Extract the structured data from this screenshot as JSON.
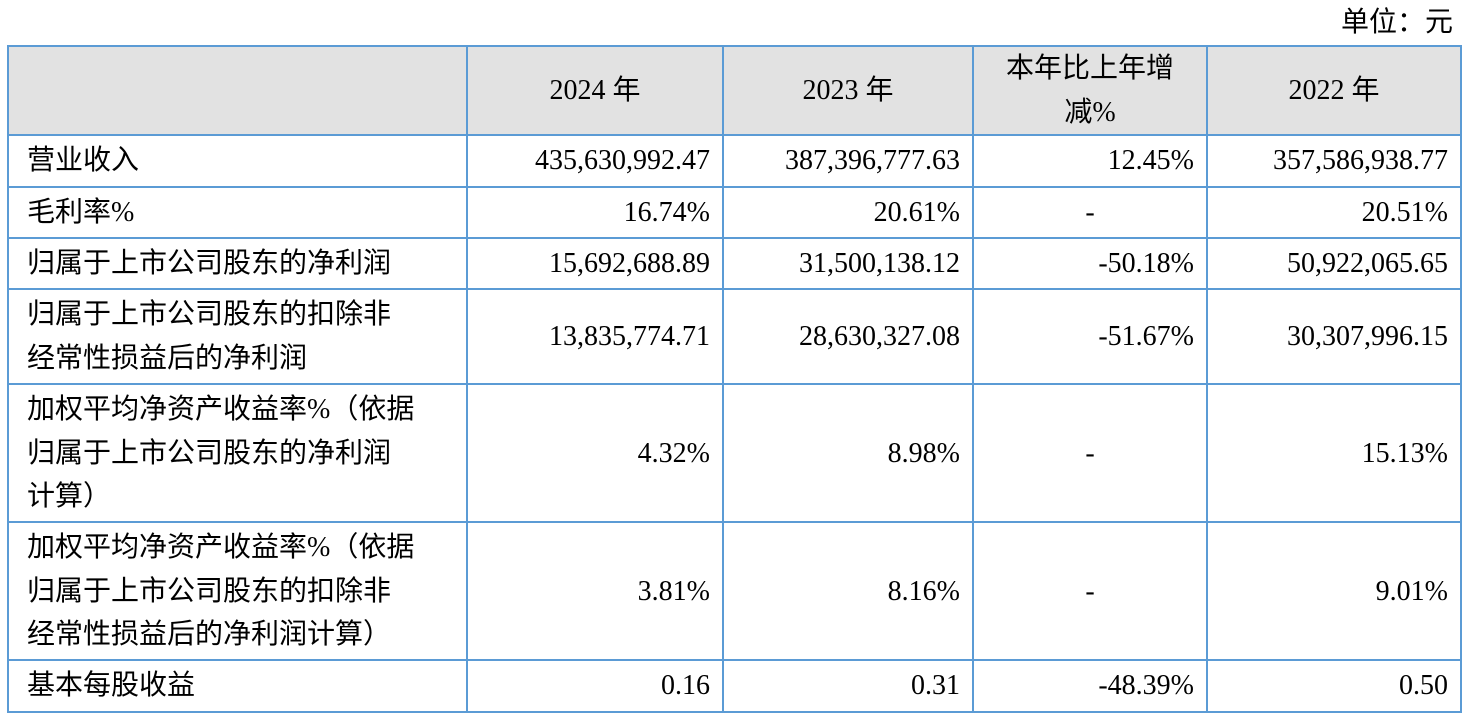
{
  "unit_label": "单位：元",
  "colors": {
    "border": "#5B9BD5",
    "header_bg": "#E2E2E2",
    "text": "#000000"
  },
  "table": {
    "columns": [
      {
        "id": "metric",
        "label": ""
      },
      {
        "id": "y2024",
        "label": "2024 年"
      },
      {
        "id": "y2023",
        "label": "2023 年"
      },
      {
        "id": "change",
        "label": "本年比上年增减%"
      },
      {
        "id": "y2022",
        "label": "2022 年"
      }
    ],
    "rows": [
      {
        "label": "营业收入",
        "values": [
          "435,630,992.47",
          "387,396,777.63",
          "12.45%",
          "357,586,938.77"
        ],
        "aligns": [
          "right",
          "right",
          "right",
          "right"
        ]
      },
      {
        "label": "毛利率%",
        "values": [
          "16.74%",
          "20.61%",
          "-",
          "20.51%"
        ],
        "aligns": [
          "right",
          "right",
          "center",
          "right"
        ]
      },
      {
        "label": "归属于上市公司股东的净利润",
        "values": [
          "15,692,688.89",
          "31,500,138.12",
          "-50.18%",
          "50,922,065.65"
        ],
        "aligns": [
          "right",
          "right",
          "right",
          "right"
        ]
      },
      {
        "label": "归属于上市公司股东的扣除非经常性损益后的净利润",
        "values": [
          "13,835,774.71",
          "28,630,327.08",
          "-51.67%",
          "30,307,996.15"
        ],
        "aligns": [
          "right",
          "right",
          "right",
          "right"
        ]
      },
      {
        "label": "加权平均净资产收益率%（依据归属于上市公司股东的净利润计算）",
        "values": [
          "4.32%",
          "8.98%",
          "-",
          "15.13%"
        ],
        "aligns": [
          "right",
          "right",
          "center",
          "right"
        ]
      },
      {
        "label": "加权平均净资产收益率%（依据归属于上市公司股东的扣除非经常性损益后的净利润计算）",
        "values": [
          "3.81%",
          "8.16%",
          "-",
          "9.01%"
        ],
        "aligns": [
          "right",
          "right",
          "center",
          "right"
        ]
      },
      {
        "label": "基本每股收益",
        "values": [
          "0.16",
          "0.31",
          "-48.39%",
          "0.50"
        ],
        "aligns": [
          "right",
          "right",
          "right",
          "right"
        ]
      }
    ]
  }
}
